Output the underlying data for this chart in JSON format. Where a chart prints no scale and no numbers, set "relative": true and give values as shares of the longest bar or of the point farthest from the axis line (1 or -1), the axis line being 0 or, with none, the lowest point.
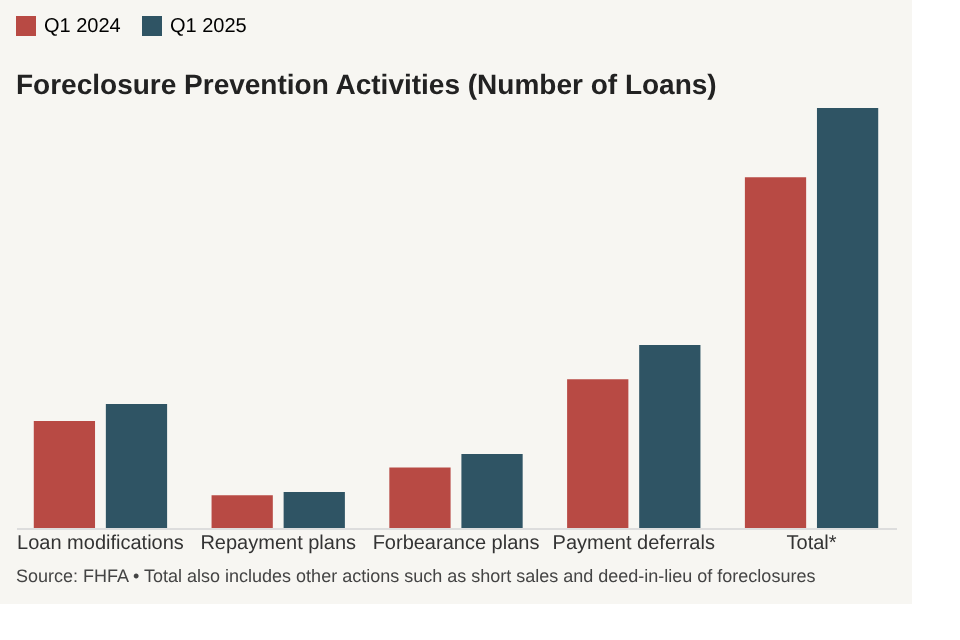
{
  "chart_data": {
    "type": "bar",
    "title": "Foreclosure Prevention Activities (Number of Loans)",
    "categories": [
      "Loan modifications",
      "Repayment plans",
      "Forbearance plans",
      "Payment deferrals",
      "Total*"
    ],
    "series": [
      {
        "name": "Q1 2024",
        "color": "#b84a44",
        "values": [
          0.255,
          0.078,
          0.144,
          0.354,
          0.835
        ]
      },
      {
        "name": "Q1 2025",
        "color": "#2f5464",
        "values": [
          0.295,
          0.086,
          0.176,
          0.436,
          1
        ]
      }
    ],
    "relative": true,
    "legend": "top left",
    "grid": false,
    "annotations": [
      "Source: FHFA • Total also includes other actions such as short sales and deed-in-lieu of foreclosures"
    ]
  }
}
